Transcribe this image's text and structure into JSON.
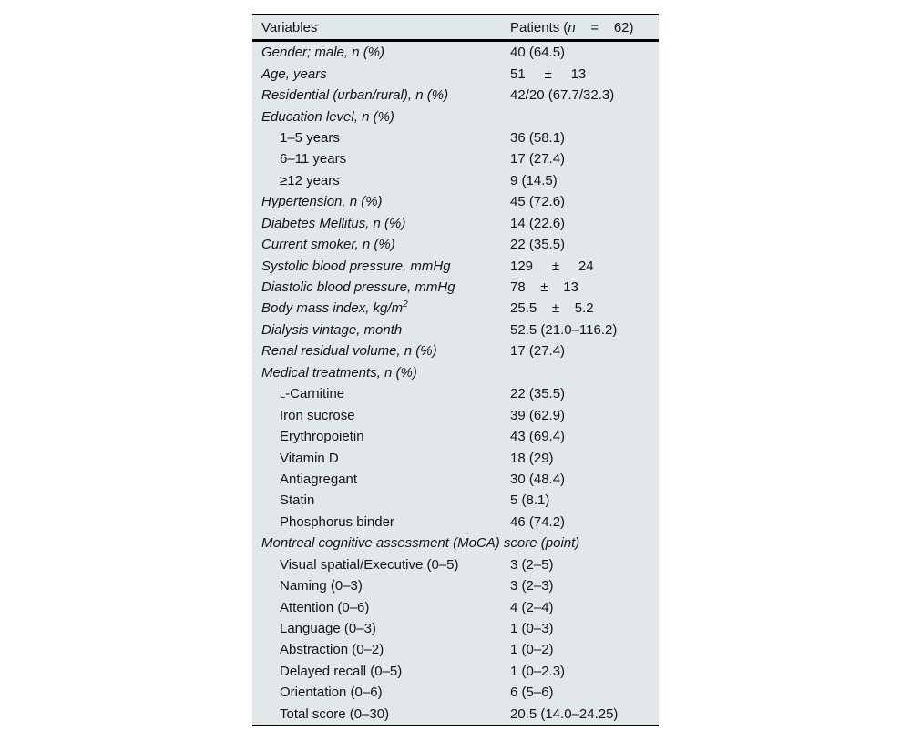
{
  "table": {
    "header": {
      "variables": "Variables",
      "patients_prefix": "Patients (",
      "patients_n": "n",
      "patients_suffix": "    =    62)"
    },
    "rows": [
      {
        "label": "Gender; male, n (%)",
        "value": "40 (64.5)",
        "italic": true
      },
      {
        "label": "Age, years",
        "value": "51     ±     13",
        "italic": true
      },
      {
        "label": "Residential (urban/rural), n (%)",
        "value": "42/20 (67.7/32.3)",
        "italic": true
      },
      {
        "label": "Education level, n (%)",
        "value": "",
        "italic": true
      },
      {
        "label": "1–5 years",
        "value": "36 (58.1)",
        "indent": true
      },
      {
        "label": "6–11 years",
        "value": "17 (27.4)",
        "indent": true
      },
      {
        "label": "≥12 years",
        "value": "9 (14.5)",
        "indent": true
      },
      {
        "label": "Hypertension, n (%)",
        "value": "45 (72.6)",
        "italic": true
      },
      {
        "label": "Diabetes Mellitus, n (%)",
        "value": "14 (22.6)",
        "italic": true
      },
      {
        "label": "Current smoker, n (%)",
        "value": "22 (35.5)",
        "italic": true
      },
      {
        "label": "Systolic blood pressure, mmHg",
        "value": "129     ±     24",
        "italic": true
      },
      {
        "label": "Diastolic blood pressure, mmHg",
        "value": "78    ±    13",
        "italic": true
      },
      {
        "label": "Body mass index, kg/m",
        "sup": "2",
        "value": "25.5    ±    5.2",
        "italic": true
      },
      {
        "label": "Dialysis vintage, month",
        "value": "52.5 (21.0–116.2)",
        "italic": true
      },
      {
        "label": "Renal residual volume, n (%)",
        "value": "17 (27.4)",
        "italic": true
      },
      {
        "label": "Medical treatments, n (%)",
        "value": "",
        "italic": true
      },
      {
        "small_cap": "L",
        "label": "-Carnitine",
        "value": "22 (35.5)",
        "indent": true
      },
      {
        "label": "Iron sucrose",
        "value": "39 (62.9)",
        "indent": true
      },
      {
        "label": "Erythropoietin",
        "value": "43 (69.4)",
        "indent": true
      },
      {
        "label": "Vitamin D",
        "value": "18 (29)",
        "indent": true
      },
      {
        "label": "Antiagregant",
        "value": "30 (48.4)",
        "indent": true
      },
      {
        "label": "Statin",
        "value": "5 (8.1)",
        "indent": true
      },
      {
        "label": "Phosphorus binder",
        "value": "46 (74.2)",
        "indent": true
      },
      {
        "label": "Montreal cognitive assessment (MoCA) score (point)",
        "value": "",
        "italic": true
      },
      {
        "label": "Visual spatial/Executive (0–5)",
        "value": "3 (2–5)",
        "indent": true
      },
      {
        "label": "Naming (0–3)",
        "value": "3 (2–3)",
        "indent": true
      },
      {
        "label": "Attention (0–6)",
        "value": "4 (2–4)",
        "indent": true
      },
      {
        "label": "Language (0–3)",
        "value": "1 (0–3)",
        "indent": true
      },
      {
        "label": "Abstraction (0–2)",
        "value": "1 (0–2)",
        "indent": true
      },
      {
        "label": "Delayed recall (0–5)",
        "value": "1 (0–2.3)",
        "indent": true
      },
      {
        "label": "Orientation (0–6)",
        "value": "6 (5–6)",
        "indent": true
      },
      {
        "label": "Total score (0–30)",
        "value": "20.5 (14.0–24.25)",
        "indent": true
      }
    ]
  }
}
